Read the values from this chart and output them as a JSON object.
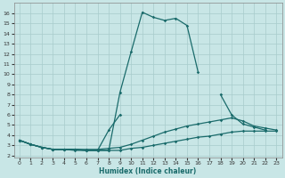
{
  "xlabel": "Humidex (Indice chaleur)",
  "xlim": [
    -0.5,
    23.5
  ],
  "ylim": [
    1.8,
    17.0
  ],
  "yticks": [
    2,
    3,
    4,
    5,
    6,
    7,
    8,
    9,
    10,
    11,
    12,
    13,
    14,
    15,
    16
  ],
  "xticks": [
    0,
    1,
    2,
    3,
    4,
    5,
    6,
    7,
    8,
    9,
    10,
    11,
    12,
    13,
    14,
    15,
    16,
    17,
    18,
    19,
    20,
    21,
    22,
    23
  ],
  "bg_color": "#c8e6e6",
  "grid_color": "#a8cccc",
  "line_color": "#1a6b6b",
  "figsize": [
    3.2,
    2.0
  ],
  "dpi": 100,
  "series": [
    [
      3.5,
      3.1,
      2.8,
      2.6,
      2.6,
      2.6,
      2.5,
      2.5,
      2.5,
      8.2,
      12.2,
      16.1,
      15.6,
      15.3,
      15.5,
      14.8,
      10.2,
      null,
      null,
      null,
      null,
      null,
      null,
      null
    ],
    [
      3.5,
      3.1,
      2.8,
      2.6,
      2.6,
      2.6,
      2.5,
      2.5,
      4.5,
      6.0,
      null,
      null,
      null,
      null,
      null,
      null,
      null,
      null,
      8.0,
      6.0,
      5.1,
      4.8,
      4.5,
      null
    ],
    [
      3.5,
      3.1,
      2.8,
      2.6,
      2.6,
      2.6,
      2.6,
      2.6,
      2.7,
      2.8,
      3.1,
      3.5,
      3.9,
      4.3,
      4.6,
      4.9,
      5.1,
      5.3,
      5.5,
      5.7,
      5.4,
      4.9,
      4.7,
      4.5
    ],
    [
      3.5,
      3.1,
      2.8,
      2.6,
      2.6,
      2.5,
      2.5,
      2.5,
      2.5,
      2.5,
      2.7,
      2.8,
      3.0,
      3.2,
      3.4,
      3.6,
      3.8,
      3.9,
      4.1,
      4.3,
      4.4,
      4.4,
      4.4,
      4.4
    ]
  ]
}
